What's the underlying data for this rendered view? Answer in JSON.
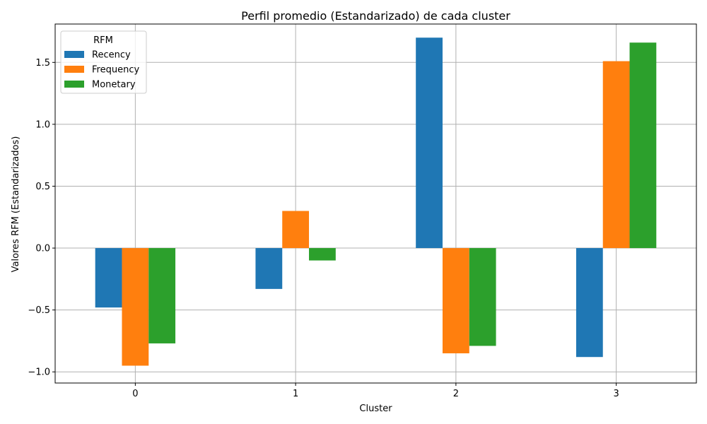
{
  "chart_data": {
    "type": "bar",
    "title": "Perfil promedio (Estandarizado) de cada cluster",
    "xlabel": "Cluster",
    "ylabel": "Valores RFM (Estandarizados)",
    "categories": [
      "0",
      "1",
      "2",
      "3"
    ],
    "series": [
      {
        "name": "Recency",
        "color": "#1f77b4",
        "values": [
          -0.48,
          -0.33,
          1.7,
          -0.88
        ]
      },
      {
        "name": "Frequency",
        "color": "#ff7f0e",
        "values": [
          -0.95,
          0.3,
          -0.85,
          1.51
        ]
      },
      {
        "name": "Monetary",
        "color": "#2ca02c",
        "values": [
          -0.77,
          -0.1,
          -0.79,
          1.66
        ]
      }
    ],
    "ylim": [
      -1.09,
      1.81
    ],
    "yticks": [
      -1.0,
      -0.5,
      0.0,
      0.5,
      1.0,
      1.5
    ],
    "ytick_labels": [
      "−1.0",
      "−0.5",
      "0.0",
      "0.5",
      "1.0",
      "1.5"
    ],
    "grid": true,
    "legend": {
      "title": "RFM",
      "position": "top-left"
    }
  }
}
